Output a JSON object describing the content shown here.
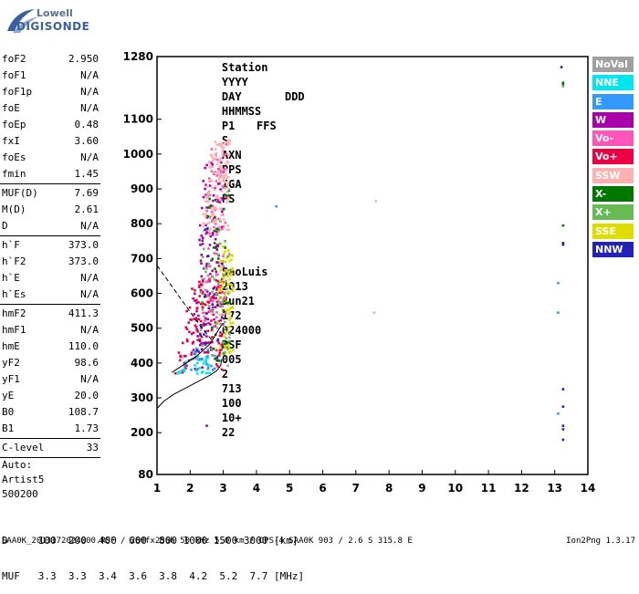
{
  "logo": {
    "line1": "Lowell",
    "line2": "DIGISONDE"
  },
  "header": {
    "labels": [
      "Station",
      "YYYY",
      "DAY",
      "DDD",
      "HHMMSS",
      "P1",
      "FFS",
      "S",
      "AXN",
      "PPS",
      "IGA",
      "PS"
    ],
    "values": [
      "SaoLuis",
      "2013",
      "Jun21",
      "172",
      "024000",
      "RSF",
      "005",
      "2",
      "713",
      "100",
      "10+",
      "22"
    ]
  },
  "params": {
    "group1": [
      {
        "k": "foF2",
        "v": "2.950"
      },
      {
        "k": "foF1",
        "v": "N/A"
      },
      {
        "k": "foF1p",
        "v": "N/A"
      },
      {
        "k": "foE",
        "v": "N/A"
      },
      {
        "k": "foEp",
        "v": "0.48"
      },
      {
        "k": "fxI",
        "v": "3.60"
      },
      {
        "k": "foEs",
        "v": "N/A"
      },
      {
        "k": "fmin",
        "v": "1.45"
      }
    ],
    "group2": [
      {
        "k": "MUF(D)",
        "v": "7.69"
      },
      {
        "k": "M(D)",
        "v": "2.61"
      },
      {
        "k": "D",
        "v": "N/A"
      }
    ],
    "group3": [
      {
        "k": "h`F",
        "v": "373.0"
      },
      {
        "k": "h`F2",
        "v": "373.0"
      },
      {
        "k": "h`E",
        "v": "N/A"
      },
      {
        "k": "h`Es",
        "v": "N/A"
      }
    ],
    "group4": [
      {
        "k": "hmF2",
        "v": "411.3"
      },
      {
        "k": "hmF1",
        "v": "N/A"
      },
      {
        "k": "hmE",
        "v": "110.0"
      },
      {
        "k": "yF2",
        "v": "98.6"
      },
      {
        "k": "yF1",
        "v": "N/A"
      },
      {
        "k": "yE",
        "v": "20.0"
      },
      {
        "k": "B0",
        "v": "108.7"
      },
      {
        "k": "B1",
        "v": "1.73"
      }
    ],
    "clevel": {
      "k": "C-level",
      "v": "33"
    },
    "auto": [
      "Auto:",
      "Artist5",
      "500200"
    ]
  },
  "legend": [
    {
      "label": "NoVal",
      "color": "#a0a0a0"
    },
    {
      "label": "NNE",
      "color": "#00e5ee"
    },
    {
      "label": "E",
      "color": "#3399ff"
    },
    {
      "label": "W",
      "color": "#aa00aa"
    },
    {
      "label": "Vo-",
      "color": "#ff55bb"
    },
    {
      "label": "Vo+",
      "color": "#ee0044"
    },
    {
      "label": "SSW",
      "color": "#ffb0b0"
    },
    {
      "label": "X-",
      "color": "#007700"
    },
    {
      "label": "X+",
      "color": "#66bb55"
    },
    {
      "label": "SSE",
      "color": "#dddd00"
    },
    {
      "label": "NNW",
      "color": "#2222bb"
    }
  ],
  "chart_data": {
    "type": "scatter",
    "xlabel": "",
    "ylabel": "",
    "xlim": [
      1,
      14
    ],
    "ylim": [
      80,
      1280
    ],
    "x_ticks": [
      1,
      2,
      3,
      4,
      5,
      6,
      7,
      8,
      9,
      10,
      11,
      12,
      13,
      14
    ],
    "y_ticks": [
      80,
      200,
      300,
      400,
      500,
      600,
      700,
      800,
      900,
      1000,
      1100,
      1280
    ],
    "profile_curve": {
      "x": [
        1.0,
        1.2,
        1.5,
        1.9,
        2.3,
        2.6,
        2.8,
        2.92,
        2.95
      ],
      "y": [
        270,
        290,
        310,
        330,
        350,
        365,
        378,
        392,
        411
      ]
    },
    "dashed_line": {
      "x": [
        1.0,
        1.6,
        2.2,
        2.7
      ],
      "y": [
        680,
        600,
        520,
        460
      ]
    },
    "trace_curve": {
      "x": [
        1.45,
        1.8,
        2.2,
        2.6,
        2.95
      ],
      "y": [
        373,
        395,
        420,
        455,
        510
      ]
    },
    "echo_clusters": [
      {
        "name": "W",
        "x": [
          2.0,
          3.0
        ],
        "y": [
          420,
          980
        ],
        "n": 150
      },
      {
        "name": "Vo+",
        "x": [
          1.5,
          3.0
        ],
        "y": [
          370,
          640
        ],
        "n": 120
      },
      {
        "name": "Vo-",
        "x": [
          2.3,
          3.1
        ],
        "y": [
          500,
          1040
        ],
        "n": 90
      },
      {
        "name": "SSW",
        "x": [
          2.3,
          3.2
        ],
        "y": [
          780,
          1040
        ],
        "n": 130
      },
      {
        "name": "SSE",
        "x": [
          2.7,
          3.3
        ],
        "y": [
          420,
          740
        ],
        "n": 90
      },
      {
        "name": "X-",
        "x": [
          2.2,
          3.2
        ],
        "y": [
          400,
          900
        ],
        "n": 40
      },
      {
        "name": "X+",
        "x": [
          2.0,
          3.2
        ],
        "y": [
          420,
          800
        ],
        "n": 40
      },
      {
        "name": "NNE",
        "x": [
          1.6,
          2.6
        ],
        "y": [
          370,
          420
        ],
        "n": 30
      },
      {
        "name": "E",
        "x": [
          1.6,
          2.8
        ],
        "y": [
          370,
          450
        ],
        "n": 25
      },
      {
        "name": "NoVal",
        "x": [
          2.0,
          3.2
        ],
        "y": [
          380,
          900
        ],
        "n": 20
      },
      {
        "name": "NNW",
        "x": [
          2.0,
          3.0
        ],
        "y": [
          400,
          800
        ],
        "n": 20
      }
    ],
    "outliers": [
      {
        "x": 4.6,
        "y": 850,
        "c": "#3399ff"
      },
      {
        "x": 7.6,
        "y": 865,
        "c": "#ffb0b0"
      },
      {
        "x": 7.55,
        "y": 545,
        "c": "#ffb0b0"
      },
      {
        "x": 2.5,
        "y": 220,
        "c": "#aa00aa"
      },
      {
        "x": 13.2,
        "y": 1250,
        "c": "#2222bb"
      },
      {
        "x": 13.25,
        "y": 1205,
        "c": "#007700"
      },
      {
        "x": 13.25,
        "y": 1200,
        "c": "#007700"
      },
      {
        "x": 13.25,
        "y": 1195,
        "c": "#66bb55"
      },
      {
        "x": 13.25,
        "y": 795,
        "c": "#007700"
      },
      {
        "x": 13.25,
        "y": 745,
        "c": "#2222bb"
      },
      {
        "x": 13.25,
        "y": 740,
        "c": "#2222bb"
      },
      {
        "x": 13.1,
        "y": 630,
        "c": "#3399ff"
      },
      {
        "x": 13.1,
        "y": 545,
        "c": "#3399ff"
      },
      {
        "x": 13.25,
        "y": 325,
        "c": "#2222bb"
      },
      {
        "x": 13.25,
        "y": 275,
        "c": "#2222bb"
      },
      {
        "x": 13.25,
        "y": 220,
        "c": "#2222bb"
      },
      {
        "x": 13.25,
        "y": 210,
        "c": "#2222bb"
      },
      {
        "x": 13.25,
        "y": 180,
        "c": "#2222bb"
      },
      {
        "x": 13.1,
        "y": 255,
        "c": "#3399ff"
      }
    ]
  },
  "distance_table": {
    "row1": "D     100  200  400  600  800 1000 1500 3000 [km]",
    "row2": "MUF   3.3  3.3  3.4  3.6  3.8  4.2  5.2  7.7 [MHz]"
  },
  "footer": {
    "left": "SAA0K_2013172024000.RSF / 260fx256h 50 kHz 5.0 km / DPS-4 SAA0K 903 / 2.6 S 315.8 E",
    "right": "Ion2Png 1.3.17"
  }
}
